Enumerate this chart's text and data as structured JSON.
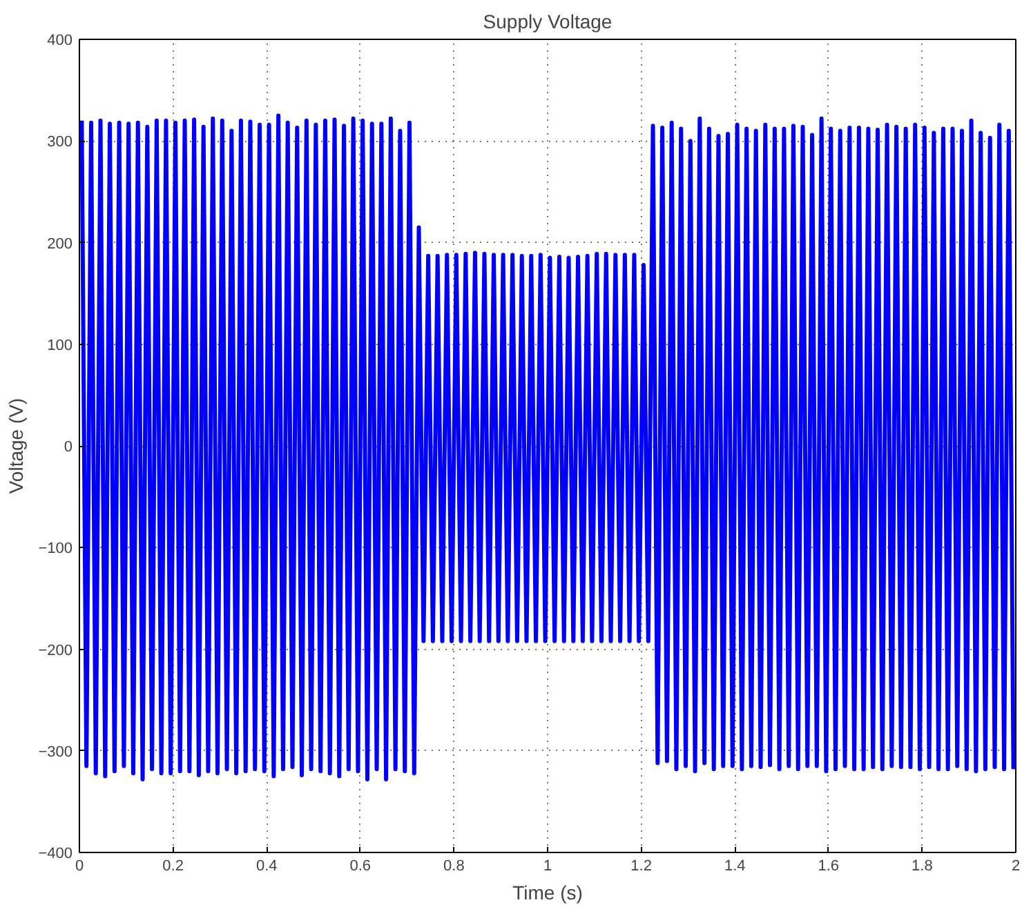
{
  "chart_data": {
    "type": "line",
    "title": "Supply Voltage",
    "xlabel": "Time (s)",
    "ylabel": "Voltage (V)",
    "xlim": [
      0,
      2
    ],
    "ylim": [
      -400,
      400
    ],
    "xticks": [
      0,
      0.2,
      0.4,
      0.6,
      0.8,
      1,
      1.2,
      1.4,
      1.6,
      1.8,
      2
    ],
    "yticks": [
      {
        "value": -400,
        "label": "−400"
      },
      {
        "value": -300,
        "label": "−300"
      },
      {
        "value": -200,
        "label": "−200"
      },
      {
        "value": -100,
        "label": "−100"
      },
      0,
      100,
      200,
      300,
      400
    ],
    "grid": true,
    "marker": "none",
    "line_style": "solid",
    "series": [
      {
        "color": "#0000ff",
        "x": [
          0.005,
          0.015,
          0.025,
          0.035,
          0.045,
          0.055,
          0.065,
          0.075,
          0.085,
          0.095,
          0.105,
          0.115,
          0.125,
          0.135,
          0.145,
          0.155,
          0.165,
          0.175,
          0.185,
          0.195,
          0.205,
          0.215,
          0.225,
          0.235,
          0.245,
          0.255,
          0.265,
          0.275,
          0.285,
          0.295,
          0.305,
          0.315,
          0.325,
          0.335,
          0.345,
          0.355,
          0.365,
          0.375,
          0.385,
          0.395,
          0.405,
          0.415,
          0.425,
          0.435,
          0.445,
          0.455,
          0.465,
          0.475,
          0.485,
          0.495,
          0.505,
          0.515,
          0.525,
          0.535,
          0.545,
          0.555,
          0.565,
          0.575,
          0.585,
          0.595,
          0.605,
          0.615,
          0.625,
          0.635,
          0.645,
          0.655,
          0.665,
          0.675,
          0.685,
          0.695,
          0.705,
          0.715,
          0.725,
          0.735,
          0.745,
          0.755,
          0.765,
          0.775,
          0.785,
          0.795,
          0.805,
          0.815,
          0.825,
          0.835,
          0.845,
          0.855,
          0.865,
          0.875,
          0.885,
          0.895,
          0.905,
          0.915,
          0.925,
          0.935,
          0.945,
          0.955,
          0.965,
          0.975,
          0.985,
          0.995,
          1.005,
          1.015,
          1.025,
          1.035,
          1.045,
          1.055,
          1.065,
          1.075,
          1.085,
          1.095,
          1.105,
          1.115,
          1.125,
          1.135,
          1.145,
          1.155,
          1.165,
          1.175,
          1.185,
          1.195,
          1.205,
          1.215,
          1.225,
          1.235,
          1.245,
          1.255,
          1.265,
          1.275,
          1.285,
          1.295,
          1.305,
          1.315,
          1.325,
          1.335,
          1.345,
          1.355,
          1.365,
          1.375,
          1.385,
          1.395,
          1.405,
          1.415,
          1.425,
          1.435,
          1.445,
          1.455,
          1.465,
          1.475,
          1.485,
          1.495,
          1.505,
          1.515,
          1.525,
          1.535,
          1.545,
          1.555,
          1.565,
          1.575,
          1.585,
          1.595,
          1.605,
          1.615,
          1.625,
          1.635,
          1.645,
          1.655,
          1.665,
          1.675,
          1.685,
          1.695,
          1.705,
          1.715,
          1.725,
          1.735,
          1.745,
          1.755,
          1.765,
          1.775,
          1.785,
          1.795,
          1.805,
          1.815,
          1.825,
          1.835,
          1.845,
          1.855,
          1.865,
          1.875,
          1.885,
          1.895,
          1.905,
          1.915,
          1.925,
          1.935,
          1.945,
          1.955,
          1.965,
          1.975,
          1.985,
          1.995
        ],
        "values": [
          320,
          -315,
          318,
          -322,
          320,
          -325,
          317,
          -320,
          318,
          -315,
          317,
          -322,
          318,
          -328,
          314,
          -318,
          320,
          -322,
          320,
          -322,
          318,
          -320,
          320,
          -320,
          321,
          -324,
          314,
          -320,
          322,
          -322,
          320,
          -318,
          310,
          -322,
          320,
          -320,
          319,
          -318,
          316,
          -320,
          316,
          -325,
          325,
          -318,
          318,
          -316,
          313,
          -324,
          320,
          -318,
          316,
          -320,
          320,
          -322,
          321,
          -325,
          315,
          -318,
          322,
          -320,
          320,
          -328,
          317,
          -318,
          317,
          -328,
          322,
          -318,
          310,
          -320,
          318,
          -322,
          215,
          -192,
          187,
          -192,
          187,
          -192,
          188,
          -192,
          188,
          -192,
          189,
          -192,
          190,
          -192,
          189,
          -192,
          188,
          -192,
          188,
          -192,
          188,
          -192,
          187,
          -192,
          187,
          -192,
          188,
          -192,
          185,
          -192,
          186,
          -192,
          185,
          -192,
          186,
          -192,
          187,
          -192,
          189,
          -192,
          189,
          -192,
          188,
          -192,
          188,
          -192,
          188,
          -192,
          178,
          -192,
          315,
          -312,
          313,
          -310,
          318,
          -318,
          312,
          -315,
          300,
          -320,
          322,
          -312,
          312,
          -318,
          305,
          -315,
          307,
          -315,
          316,
          -318,
          312,
          -315,
          310,
          -316,
          316,
          -314,
          312,
          -318,
          312,
          -315,
          315,
          -318,
          314,
          -315,
          306,
          -315,
          322,
          -320,
          312,
          -318,
          310,
          -315,
          313,
          -318,
          313,
          -318,
          312,
          -316,
          311,
          -318,
          316,
          -315,
          314,
          -316,
          312,
          -316,
          316,
          -318,
          313,
          -316,
          308,
          -318,
          312,
          -318,
          312,
          -315,
          310,
          -318,
          320,
          -320,
          308,
          -318,
          303,
          -316,
          316,
          -318,
          310,
          -318
        ]
      }
    ]
  }
}
